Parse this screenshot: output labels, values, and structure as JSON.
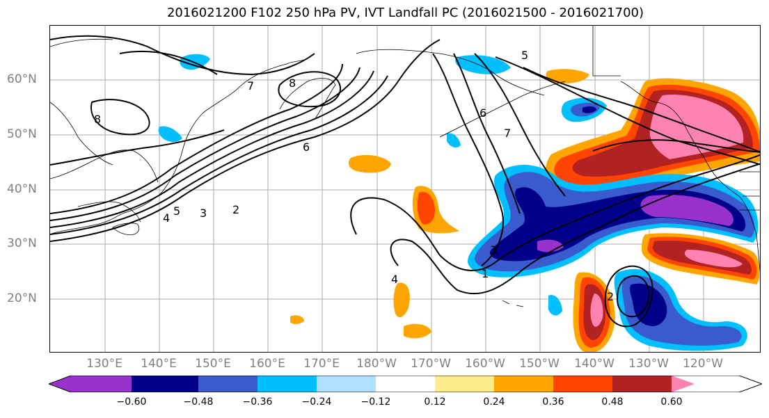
{
  "title": "2016021200 F102 250 hPa PV, IVT Landfall PC (2016021500 - 2016021700)",
  "lat_labels": [
    "60°N",
    "50°N",
    "40°N",
    "30°N",
    "20°N"
  ],
  "lon_labels": [
    "130°E",
    "140°E",
    "150°E",
    "160°E",
    "170°E",
    "180°W",
    "170°W",
    "160°W",
    "150°W",
    "140°W",
    "130°W",
    "120°W"
  ],
  "contour_labels": [
    "5",
    "8",
    "7",
    "8",
    "6",
    "6",
    "7",
    "4",
    "5",
    "3",
    "2",
    "4",
    "3",
    "2",
    "1"
  ],
  "colorbar": {
    "ticks": [
      "−0.60",
      "−0.48",
      "−0.36",
      "−0.24",
      "−0.12",
      "0.12",
      "0.24",
      "0.36",
      "0.48",
      "0.60"
    ],
    "colors": [
      "#9932cc",
      "#00008b",
      "#3a5bcd",
      "#00bfff",
      "#b0e2ff",
      "#ffffff",
      "#ffec8b",
      "#ffa500",
      "#ff4500",
      "#b22222",
      "#ff83b0"
    ]
  }
}
